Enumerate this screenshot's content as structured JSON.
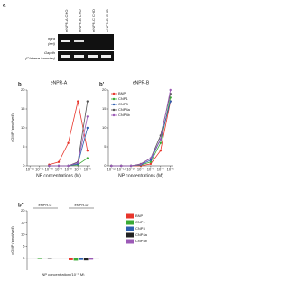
{
  "panel_a": {
    "panel": "a",
    "columns": [
      "eNPR-A CHO",
      "eNPR-B CHO",
      "eNPR-C CHO",
      "eNPR-D CHO"
    ],
    "rows": [
      {
        "gene": "npra",
        "species": "(eel)"
      },
      {
        "gene": "Gapdh",
        "species": "(Chinese hamster)"
      }
    ]
  },
  "chart_data": [
    {
      "type": "line",
      "panel": "b",
      "title": "eNPR-A",
      "x_label": "NP concentrations (M)",
      "y_label": "cGMP (pmol/well)",
      "xscale": "log",
      "x": [
        1e-10,
        1e-09,
        1e-08,
        1e-07,
        1e-06
      ],
      "series": [
        {
          "color": "#e8352b",
          "values": [
            0.3,
            1,
            6,
            17,
            4
          ]
        },
        {
          "color": "#3aaa35",
          "values": [
            0,
            0,
            0,
            0.3,
            2
          ]
        },
        {
          "color": "#2e5fb0",
          "values": [
            0,
            0,
            0,
            0.5,
            10
          ]
        },
        {
          "color": "#555555",
          "values": [
            0,
            0,
            0,
            1,
            17
          ]
        },
        {
          "color": "#9b59b6",
          "values": [
            0,
            0,
            0,
            0.8,
            13
          ]
        }
      ],
      "xlim": [
        5e-13,
        2e-06
      ],
      "xticks": [
        {
          "value": 1e-12,
          "label": "10⁻¹²"
        },
        {
          "value": 1e-11,
          "label": "10⁻¹¹"
        },
        {
          "value": 1e-10,
          "label": "10⁻¹⁰"
        },
        {
          "value": 1e-09,
          "label": "10⁻⁹"
        },
        {
          "value": 1e-08,
          "label": "10⁻⁸"
        },
        {
          "value": 1e-07,
          "label": "10⁻⁷"
        },
        {
          "value": 1e-06,
          "label": "10⁻⁶"
        }
      ],
      "ylim": [
        0,
        20
      ],
      "yticks": [
        0,
        5,
        10,
        15,
        20
      ]
    },
    {
      "type": "line",
      "panel": "b'",
      "title": "eNPR-B",
      "x_label": "NP concentrations (M)",
      "xscale": "log",
      "legend": "top-left",
      "x": [
        1e-12,
        1e-11,
        1e-10,
        1e-09,
        1e-08,
        1e-07,
        1e-06
      ],
      "series": [
        {
          "name": "BNP",
          "color": "#e8352b",
          "values": [
            0,
            0,
            0,
            0,
            0.5,
            4,
            17
          ]
        },
        {
          "name": "CNP1",
          "color": "#3aaa35",
          "values": [
            0,
            0,
            0,
            0.2,
            1,
            6,
            18
          ]
        },
        {
          "name": "CNP3",
          "color": "#2e5fb0",
          "values": [
            0,
            0,
            0,
            0.3,
            1.5,
            7,
            17
          ]
        },
        {
          "name": "CNP4a",
          "color": "#555555",
          "values": [
            0,
            0,
            0,
            0.5,
            2,
            8,
            19
          ]
        },
        {
          "name": "CNP4b",
          "color": "#9b59b6",
          "values": [
            0,
            0,
            0,
            0.4,
            2,
            7,
            20
          ]
        }
      ],
      "xlim": [
        5e-13,
        2e-06
      ],
      "xticks": [
        {
          "value": 1e-12,
          "label": "10⁻¹²"
        },
        {
          "value": 1e-11,
          "label": "10⁻¹¹"
        },
        {
          "value": 1e-10,
          "label": "10⁻¹⁰"
        },
        {
          "value": 1e-09,
          "label": "10⁻⁹"
        },
        {
          "value": 1e-08,
          "label": "10⁻⁸"
        },
        {
          "value": 1e-07,
          "label": "10⁻⁷"
        },
        {
          "value": 1e-06,
          "label": "10⁻⁶"
        }
      ],
      "ylim": [
        0,
        20
      ],
      "yticks": [
        0,
        5,
        10,
        15,
        20
      ]
    },
    {
      "type": "bar",
      "panel": "b''",
      "x_label": "NP concentration (10⁻⁶ M)",
      "y_label": "cGMP (pmol/well)",
      "legend": "right",
      "categories": [
        "eNPR-C",
        "eNPR-D"
      ],
      "series": [
        {
          "name": "BNP",
          "color": "#e8352b",
          "values": [
            0.2,
            -0.8
          ]
        },
        {
          "name": "CNP1",
          "color": "#3aaa35",
          "values": [
            -0.3,
            -1
          ]
        },
        {
          "name": "CNP3",
          "color": "#2e5fb0",
          "values": [
            0.3,
            -0.7
          ]
        },
        {
          "name": "CNP4a",
          "color": "#222222",
          "values": [
            -0.2,
            -0.9
          ]
        },
        {
          "name": "CNP4b",
          "color": "#9b59b6",
          "values": [
            0.1,
            -0.6
          ]
        }
      ],
      "ylim": [
        -5,
        20
      ],
      "yticks": [
        0,
        5,
        10,
        15,
        20
      ]
    }
  ]
}
